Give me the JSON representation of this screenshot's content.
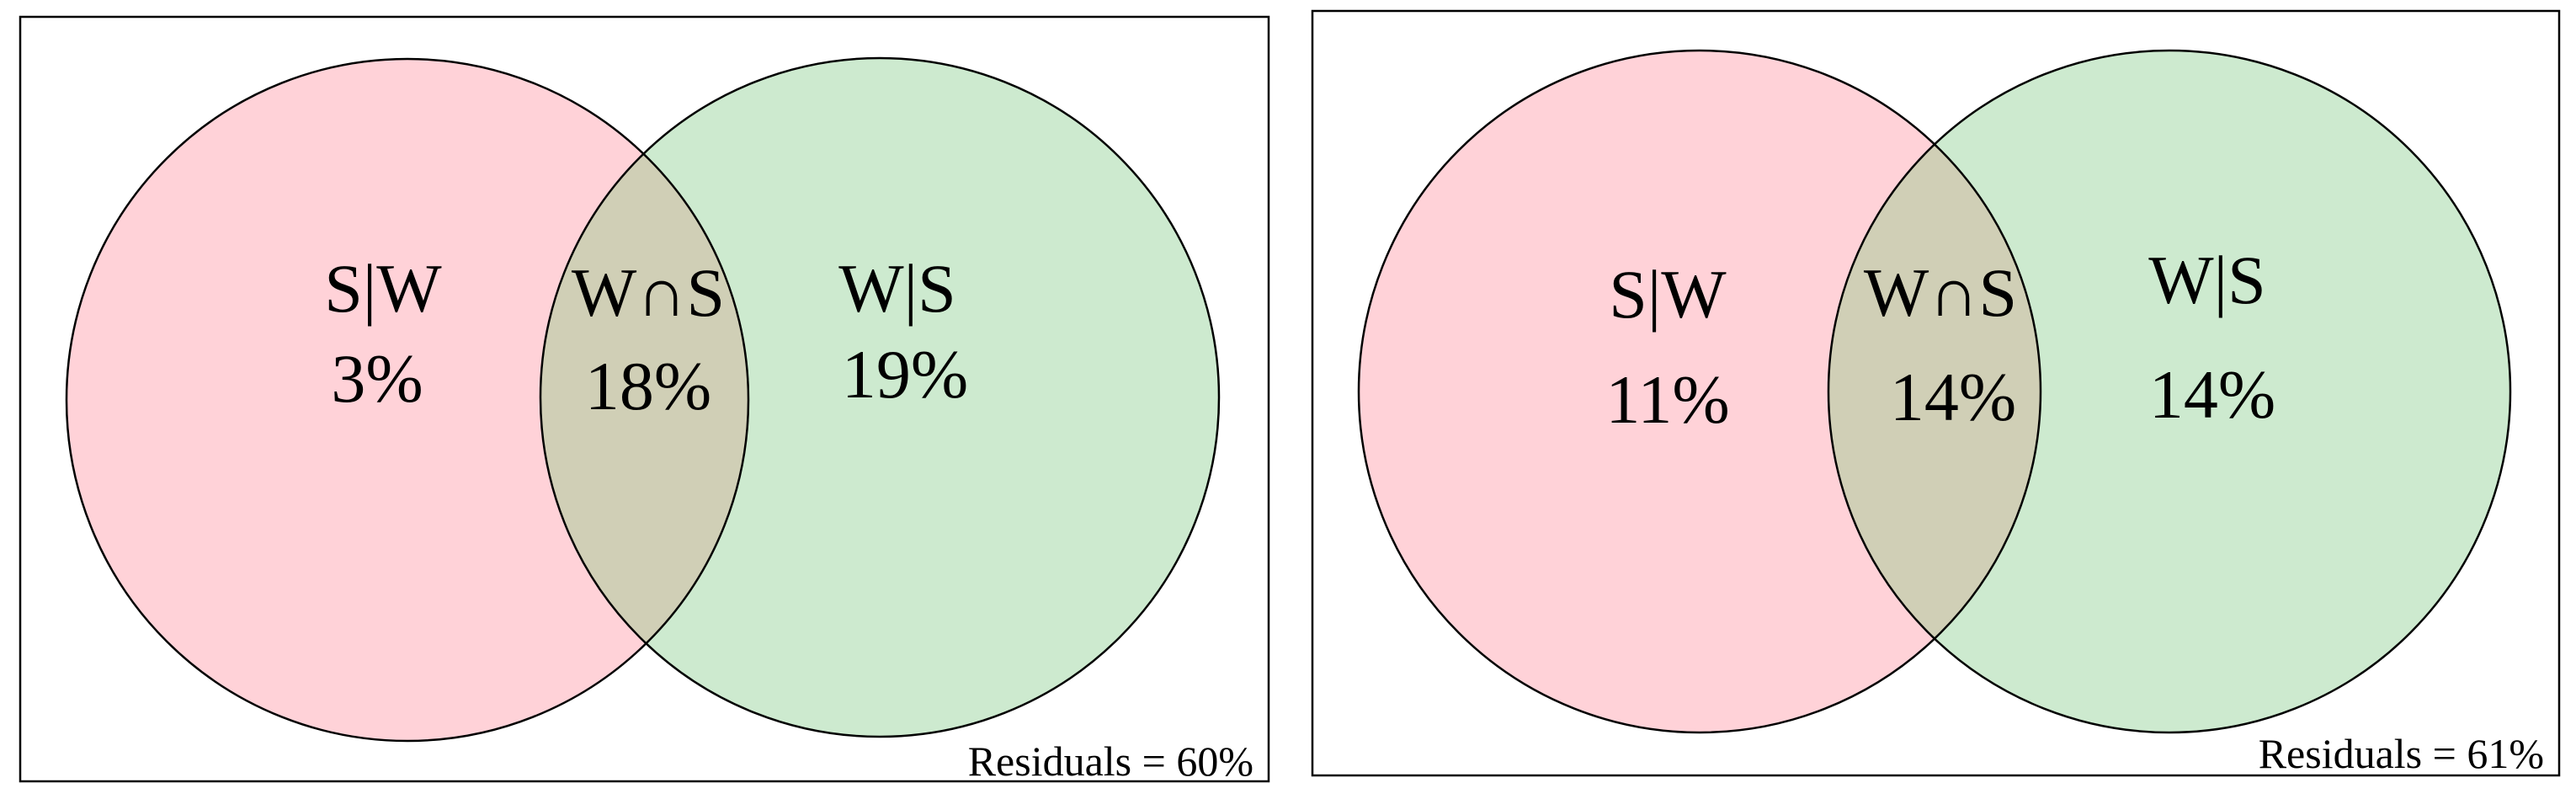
{
  "panels": [
    {
      "left_set": {
        "label": "S|W",
        "value": "3%"
      },
      "intersection": {
        "label": "W∩S",
        "value": "18%"
      },
      "right_set": {
        "label": "W|S",
        "value": "19%"
      },
      "residuals": "Residuals = 60%"
    },
    {
      "left_set": {
        "label": "S|W",
        "value": "11%"
      },
      "intersection": {
        "label": "W∩S",
        "value": "14%"
      },
      "right_set": {
        "label": "W|S",
        "value": "14%"
      },
      "residuals": "Residuals = 61%"
    }
  ],
  "colors": {
    "left_circle": "#ffd2d8",
    "right_circle": "#cdeacf",
    "overlap": "#d0cfb6",
    "outline": "#000000"
  }
}
